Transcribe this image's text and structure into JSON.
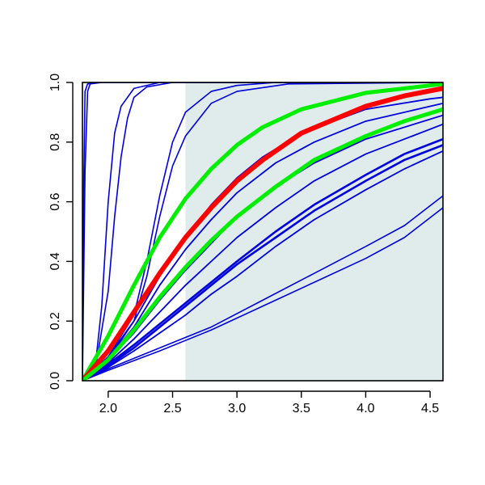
{
  "chart_data": {
    "type": "line",
    "title": "",
    "xlabel": "",
    "ylabel": "",
    "xlim": [
      1.8,
      4.6
    ],
    "ylim": [
      0.0,
      1.0
    ],
    "grid": false,
    "legend": "none",
    "x_ticks": [
      {
        "value": 2.0,
        "label": "2.0"
      },
      {
        "value": 2.5,
        "label": "2.5"
      },
      {
        "value": 3.0,
        "label": "3.0"
      },
      {
        "value": 3.5,
        "label": "3.5"
      },
      {
        "value": 4.0,
        "label": "4.0"
      },
      {
        "value": 4.5,
        "label": "4.5"
      }
    ],
    "y_ticks": [
      {
        "value": 0.0,
        "label": "0.0"
      },
      {
        "value": 0.2,
        "label": "0.2"
      },
      {
        "value": 0.4,
        "label": "0.4"
      },
      {
        "value": 0.6,
        "label": "0.6"
      },
      {
        "value": 0.8,
        "label": "0.8"
      },
      {
        "value": 1.0,
        "label": "1.0"
      }
    ],
    "shaded_region": {
      "x": [
        2.6,
        4.6
      ],
      "y": [
        0.0,
        1.0
      ],
      "color": "#e0ecec"
    },
    "x_start": 1.8,
    "series": [
      {
        "color": "#0000dd",
        "width": 1.6,
        "values": [
          [
            1.8,
            0.0
          ],
          [
            1.81,
            0.65
          ],
          [
            1.82,
            0.97
          ],
          [
            1.84,
            0.995
          ],
          [
            1.9,
            1.0
          ],
          [
            4.6,
            1.0
          ]
        ]
      },
      {
        "color": "#0000dd",
        "width": 1.6,
        "values": [
          [
            1.8,
            0.0
          ],
          [
            1.82,
            0.7
          ],
          [
            1.84,
            0.97
          ],
          [
            1.86,
            0.995
          ],
          [
            1.95,
            1.0
          ],
          [
            4.6,
            1.0
          ]
        ]
      },
      {
        "color": "#0000dd",
        "width": 1.6,
        "values": [
          [
            1.8,
            0.0
          ],
          [
            1.9,
            0.05
          ],
          [
            1.95,
            0.25
          ],
          [
            2.0,
            0.6
          ],
          [
            2.05,
            0.83
          ],
          [
            2.1,
            0.92
          ],
          [
            2.2,
            0.98
          ],
          [
            2.4,
            1.0
          ],
          [
            4.6,
            1.0
          ]
        ]
      },
      {
        "color": "#0000dd",
        "width": 1.6,
        "values": [
          [
            1.8,
            0.0
          ],
          [
            1.9,
            0.04
          ],
          [
            2.0,
            0.3
          ],
          [
            2.05,
            0.55
          ],
          [
            2.1,
            0.75
          ],
          [
            2.15,
            0.88
          ],
          [
            2.2,
            0.95
          ],
          [
            2.3,
            0.985
          ],
          [
            2.5,
            1.0
          ],
          [
            4.6,
            1.0
          ]
        ]
      },
      {
        "color": "#0000dd",
        "width": 1.6,
        "values": [
          [
            1.8,
            0.0
          ],
          [
            2.0,
            0.08
          ],
          [
            2.2,
            0.22
          ],
          [
            2.3,
            0.4
          ],
          [
            2.4,
            0.62
          ],
          [
            2.5,
            0.8
          ],
          [
            2.6,
            0.9
          ],
          [
            2.8,
            0.97
          ],
          [
            3.0,
            0.99
          ],
          [
            3.3,
            1.0
          ],
          [
            4.6,
            1.0
          ]
        ]
      },
      {
        "color": "#0000dd",
        "width": 1.6,
        "values": [
          [
            1.8,
            0.0
          ],
          [
            2.0,
            0.07
          ],
          [
            2.2,
            0.2
          ],
          [
            2.3,
            0.35
          ],
          [
            2.4,
            0.55
          ],
          [
            2.5,
            0.72
          ],
          [
            2.6,
            0.82
          ],
          [
            2.8,
            0.93
          ],
          [
            3.0,
            0.97
          ],
          [
            3.4,
            0.995
          ],
          [
            4.6,
            1.0
          ]
        ]
      },
      {
        "color": "#0000dd",
        "width": 1.8,
        "values": [
          [
            1.8,
            0.0
          ],
          [
            2.0,
            0.08
          ],
          [
            2.2,
            0.2
          ],
          [
            2.4,
            0.35
          ],
          [
            2.6,
            0.48
          ],
          [
            2.8,
            0.59
          ],
          [
            3.0,
            0.68
          ],
          [
            3.2,
            0.75
          ],
          [
            3.5,
            0.83
          ],
          [
            4.0,
            0.91
          ],
          [
            4.5,
            0.945
          ],
          [
            4.6,
            0.95
          ]
        ]
      },
      {
        "color": "#0000dd",
        "width": 1.8,
        "values": [
          [
            1.8,
            0.0
          ],
          [
            2.0,
            0.075
          ],
          [
            2.2,
            0.18
          ],
          [
            2.4,
            0.32
          ],
          [
            2.6,
            0.44
          ],
          [
            2.8,
            0.54
          ],
          [
            3.0,
            0.63
          ],
          [
            3.3,
            0.73
          ],
          [
            3.6,
            0.8
          ],
          [
            4.0,
            0.87
          ],
          [
            4.6,
            0.93
          ]
        ]
      },
      {
        "color": "#0000dd",
        "width": 1.8,
        "values": [
          [
            1.8,
            0.0
          ],
          [
            2.0,
            0.07
          ],
          [
            2.2,
            0.16
          ],
          [
            2.4,
            0.27
          ],
          [
            2.6,
            0.37
          ],
          [
            2.8,
            0.46
          ],
          [
            3.0,
            0.55
          ],
          [
            3.3,
            0.65
          ],
          [
            3.6,
            0.73
          ],
          [
            4.0,
            0.81
          ],
          [
            4.6,
            0.89
          ]
        ]
      },
      {
        "color": "#0000dd",
        "width": 1.8,
        "values": [
          [
            1.8,
            0.0
          ],
          [
            2.0,
            0.06
          ],
          [
            2.2,
            0.14
          ],
          [
            2.4,
            0.23
          ],
          [
            2.6,
            0.32
          ],
          [
            2.8,
            0.4
          ],
          [
            3.0,
            0.48
          ],
          [
            3.3,
            0.58
          ],
          [
            3.6,
            0.67
          ],
          [
            4.0,
            0.76
          ],
          [
            4.6,
            0.86
          ]
        ]
      },
      {
        "color": "#0000dd",
        "width": 2.6,
        "values": [
          [
            1.8,
            0.0
          ],
          [
            2.0,
            0.055
          ],
          [
            2.2,
            0.12
          ],
          [
            2.4,
            0.19
          ],
          [
            2.6,
            0.26
          ],
          [
            2.8,
            0.33
          ],
          [
            3.0,
            0.4
          ],
          [
            3.3,
            0.5
          ],
          [
            3.6,
            0.59
          ],
          [
            4.0,
            0.69
          ],
          [
            4.3,
            0.76
          ],
          [
            4.6,
            0.81
          ]
        ]
      },
      {
        "color": "#0000dd",
        "width": 2.6,
        "values": [
          [
            1.8,
            0.0
          ],
          [
            2.0,
            0.05
          ],
          [
            2.2,
            0.11
          ],
          [
            2.4,
            0.18
          ],
          [
            2.6,
            0.25
          ],
          [
            2.8,
            0.32
          ],
          [
            3.0,
            0.39
          ],
          [
            3.3,
            0.48
          ],
          [
            3.6,
            0.57
          ],
          [
            4.0,
            0.67
          ],
          [
            4.3,
            0.74
          ],
          [
            4.6,
            0.79
          ]
        ]
      },
      {
        "color": "#0000dd",
        "width": 1.8,
        "values": [
          [
            1.8,
            0.0
          ],
          [
            2.0,
            0.045
          ],
          [
            2.2,
            0.1
          ],
          [
            2.4,
            0.16
          ],
          [
            2.6,
            0.22
          ],
          [
            2.8,
            0.29
          ],
          [
            3.0,
            0.35
          ],
          [
            3.3,
            0.45
          ],
          [
            3.6,
            0.54
          ],
          [
            4.0,
            0.64
          ],
          [
            4.3,
            0.71
          ],
          [
            4.6,
            0.77
          ]
        ]
      },
      {
        "color": "#0000dd",
        "width": 1.6,
        "values": [
          [
            1.8,
            0.0
          ],
          [
            2.0,
            0.04
          ],
          [
            2.4,
            0.11
          ],
          [
            2.8,
            0.18
          ],
          [
            3.2,
            0.27
          ],
          [
            3.6,
            0.36
          ],
          [
            4.0,
            0.45
          ],
          [
            4.3,
            0.52
          ],
          [
            4.6,
            0.62
          ]
        ]
      },
      {
        "color": "#0000dd",
        "width": 1.6,
        "values": [
          [
            1.8,
            0.0
          ],
          [
            2.0,
            0.035
          ],
          [
            2.4,
            0.1
          ],
          [
            2.8,
            0.17
          ],
          [
            3.2,
            0.25
          ],
          [
            3.6,
            0.33
          ],
          [
            4.0,
            0.41
          ],
          [
            4.3,
            0.48
          ],
          [
            4.6,
            0.58
          ]
        ]
      },
      {
        "color": "#00ee00",
        "width": 5,
        "values": [
          [
            1.8,
            0.0
          ],
          [
            2.0,
            0.15
          ],
          [
            2.2,
            0.32
          ],
          [
            2.4,
            0.48
          ],
          [
            2.6,
            0.61
          ],
          [
            2.8,
            0.71
          ],
          [
            3.0,
            0.79
          ],
          [
            3.2,
            0.85
          ],
          [
            3.5,
            0.91
          ],
          [
            4.0,
            0.965
          ],
          [
            4.5,
            0.99
          ],
          [
            4.6,
            0.995
          ]
        ]
      },
      {
        "color": "#ff0000",
        "width": 6,
        "values": [
          [
            1.8,
            0.0
          ],
          [
            2.0,
            0.1
          ],
          [
            2.2,
            0.23
          ],
          [
            2.4,
            0.36
          ],
          [
            2.6,
            0.48
          ],
          [
            2.8,
            0.58
          ],
          [
            3.0,
            0.67
          ],
          [
            3.2,
            0.74
          ],
          [
            3.5,
            0.83
          ],
          [
            4.0,
            0.92
          ],
          [
            4.3,
            0.955
          ],
          [
            4.6,
            0.98
          ]
        ]
      },
      {
        "color": "#00ee00",
        "width": 5,
        "values": [
          [
            1.8,
            0.0
          ],
          [
            2.0,
            0.07
          ],
          [
            2.2,
            0.17
          ],
          [
            2.4,
            0.28
          ],
          [
            2.6,
            0.38
          ],
          [
            2.8,
            0.47
          ],
          [
            3.0,
            0.55
          ],
          [
            3.3,
            0.65
          ],
          [
            3.6,
            0.74
          ],
          [
            4.0,
            0.82
          ],
          [
            4.3,
            0.87
          ],
          [
            4.6,
            0.91
          ]
        ]
      }
    ]
  }
}
